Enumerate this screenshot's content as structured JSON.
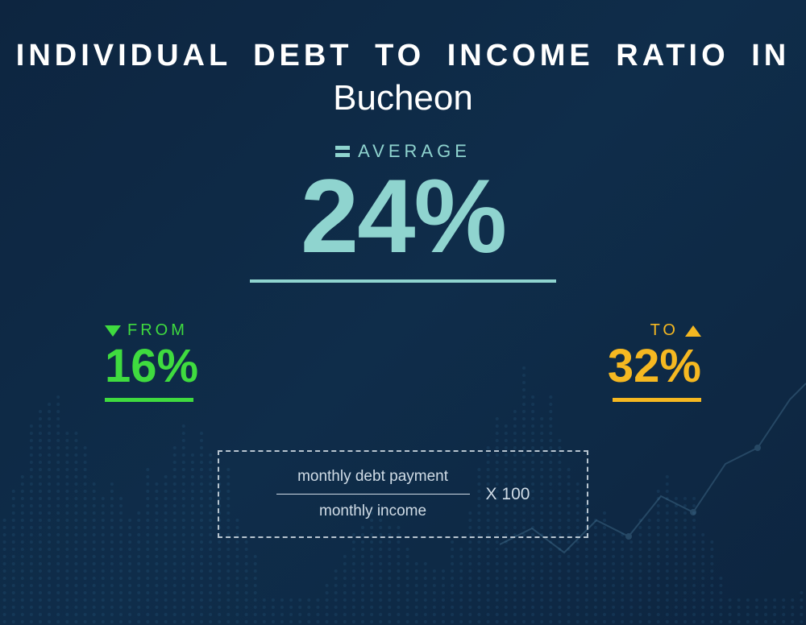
{
  "title": {
    "line1": "INDIVIDUAL  DEBT  TO  INCOME RATIO  IN",
    "line2": "Bucheon",
    "color": "#ffffff",
    "line1_fontsize": 38,
    "line2_fontsize": 44
  },
  "background": {
    "gradient_from": "#0d2540",
    "gradient_to": "#0f2d4a",
    "dot_color": "#3a7ca8",
    "line_color": "#6fa8c8"
  },
  "average": {
    "label": "AVERAGE",
    "value": "24%",
    "color": "#8fd4cf",
    "label_fontsize": 22,
    "value_fontsize": 130,
    "underline_width": 380
  },
  "from": {
    "label": "FROM",
    "value": "16%",
    "color": "#3fdb3f",
    "arrow": "down",
    "label_fontsize": 20,
    "value_fontsize": 58
  },
  "to": {
    "label": "TO",
    "value": "32%",
    "color": "#f5b821",
    "arrow": "up",
    "label_fontsize": 20,
    "value_fontsize": 58
  },
  "formula": {
    "numerator": "monthly debt payment",
    "denominator": "monthly income",
    "multiplier": "X 100",
    "text_color": "#d0dce6",
    "border_color": "#b8c5d0",
    "fontsize": 19
  }
}
